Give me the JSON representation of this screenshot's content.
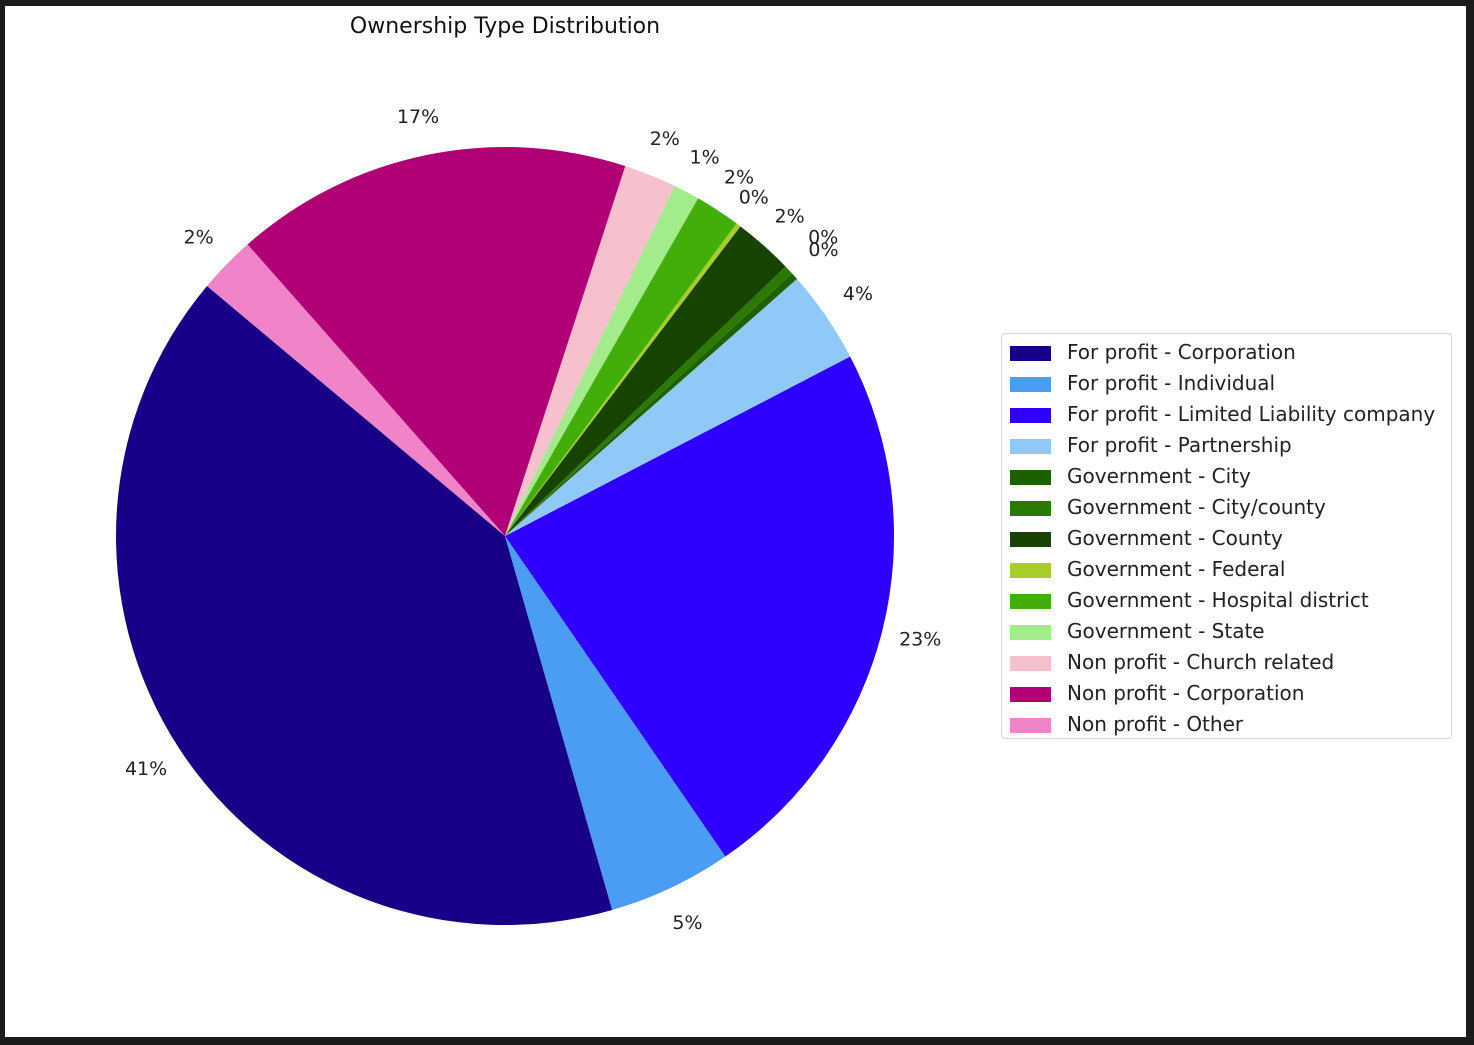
{
  "chart_data": {
    "type": "pie",
    "title": "Ownership Type Distribution",
    "legend_position": "right",
    "slices": [
      {
        "label": "For profit - Corporation",
        "value": 41,
        "pct_label": "41%",
        "color": "#170087"
      },
      {
        "label": "For profit - Individual",
        "value": 5.2,
        "pct_label": "5%",
        "color": "#4b9cf5"
      },
      {
        "label": "For profit - Limited Liability company",
        "value": 23.3,
        "pct_label": "23%",
        "color": "#2f00ff"
      },
      {
        "label": "For profit - Partnership",
        "value": 3.9,
        "pct_label": "4%",
        "color": "#90c8f8"
      },
      {
        "label": "Government - City",
        "value": 0.3,
        "pct_label": "0%",
        "color": "#1e5f00"
      },
      {
        "label": "Government - City/county",
        "value": 0.4,
        "pct_label": "0%",
        "color": "#2a7a02"
      },
      {
        "label": "Government - County",
        "value": 2.5,
        "pct_label": "2%",
        "color": "#164400"
      },
      {
        "label": "Government - Federal",
        "value": 0.2,
        "pct_label": "0%",
        "color": "#a8cc2a"
      },
      {
        "label": "Government - Hospital district",
        "value": 1.9,
        "pct_label": "2%",
        "color": "#43ae09"
      },
      {
        "label": "Government - State",
        "value": 1.1,
        "pct_label": "1%",
        "color": "#a3ec8c"
      },
      {
        "label": "Non profit - Church related",
        "value": 2.2,
        "pct_label": "2%",
        "color": "#f6c1cc"
      },
      {
        "label": "Non profit - Corporation",
        "value": 16.7,
        "pct_label": "17%",
        "color": "#b10076"
      },
      {
        "label": "Non profit - Other",
        "value": 2.4,
        "pct_label": "2%",
        "color": "#f184c8"
      }
    ]
  }
}
